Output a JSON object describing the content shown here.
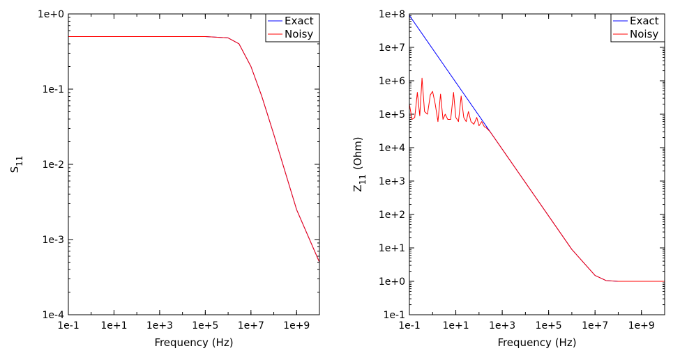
{
  "chart_data": [
    {
      "type": "line",
      "xscale": "log",
      "yscale": "log",
      "xlabel": "Frequency (Hz)",
      "ylabel": "S",
      "ylabel_subscript": "11",
      "xlim": [
        0.1,
        10000000000.0
      ],
      "ylim": [
        0.0001,
        1
      ],
      "xticks": [
        "1e-1",
        "1e+1",
        "1e+3",
        "1e+5",
        "1e+7",
        "1e+9"
      ],
      "yticks": [
        "1e-4",
        "1e-3",
        "1e-2",
        "1e-1",
        "1e+0"
      ],
      "legend_position": "top-right",
      "series": [
        {
          "name": "Exact",
          "color": "#0000ff",
          "x": [
            0.1,
            1,
            10,
            100,
            1000,
            10000,
            100000,
            1000000,
            3000000,
            10000000,
            30000000,
            100000000,
            1000000000,
            10000000000
          ],
          "y": [
            0.5,
            0.5,
            0.5,
            0.5,
            0.5,
            0.5,
            0.5,
            0.48,
            0.4,
            0.2,
            0.08,
            0.025,
            0.0025,
            0.0005
          ]
        },
        {
          "name": "Noisy",
          "color": "#ff0000",
          "x": [
            0.1,
            1,
            10,
            100,
            1000,
            10000,
            100000,
            1000000,
            3000000,
            10000000,
            30000000,
            100000000,
            1000000000,
            10000000000
          ],
          "y": [
            0.5,
            0.5,
            0.5,
            0.5,
            0.5,
            0.5,
            0.5,
            0.48,
            0.4,
            0.2,
            0.08,
            0.025,
            0.0025,
            0.0005
          ]
        }
      ]
    },
    {
      "type": "line",
      "xscale": "log",
      "yscale": "log",
      "xlabel": "Frequency (Hz)",
      "ylabel": "Z",
      "ylabel_subscript": "11",
      "ylabel_unit": "(Ohm)",
      "xlim": [
        0.1,
        10000000000.0
      ],
      "ylim": [
        0.1,
        100000000.0
      ],
      "xticks": [
        "1e-1",
        "1e+1",
        "1e+3",
        "1e+5",
        "1e+7",
        "1e+9"
      ],
      "yticks": [
        "1e-1",
        "1e+0",
        "1e+1",
        "1e+2",
        "1e+3",
        "1e+4",
        "1e+5",
        "1e+6",
        "1e+7",
        "1e+8"
      ],
      "legend_position": "top-right",
      "series": [
        {
          "name": "Exact",
          "color": "#0000ff",
          "x": [
            0.1,
            1,
            10,
            100,
            1000,
            10000,
            100000,
            1000000,
            10000000,
            30000000,
            100000000,
            1000000000,
            10000000000
          ],
          "y": [
            90000000,
            9000000,
            900000,
            90000,
            9000,
            900,
            90,
            9,
            1.5,
            1.05,
            1.0,
            1.0,
            1.0
          ]
        },
        {
          "name": "Noisy",
          "color": "#ff0000",
          "x": [
            0.1,
            0.13,
            0.17,
            0.22,
            0.28,
            0.35,
            0.45,
            0.6,
            0.8,
            1.0,
            1.3,
            1.7,
            2.2,
            2.8,
            3.5,
            4.5,
            6,
            8,
            10,
            13,
            17,
            22,
            28,
            35,
            45,
            60,
            80,
            100,
            130,
            170,
            200,
            300,
            1000,
            10000,
            100000,
            1000000,
            10000000,
            30000000,
            100000000,
            1000000000,
            10000000000
          ],
          "y": [
            200000,
            70000,
            80000,
            450000,
            90000,
            1200000,
            120000,
            100000,
            380000,
            480000,
            200000,
            60000,
            400000,
            70000,
            100000,
            70000,
            70000,
            450000,
            80000,
            60000,
            350000,
            80000,
            60000,
            120000,
            60000,
            50000,
            80000,
            45000,
            60000,
            42000,
            40000,
            30000,
            9000,
            900,
            90,
            9,
            1.5,
            1.05,
            1.0,
            1.0,
            1.0
          ]
        }
      ]
    }
  ]
}
